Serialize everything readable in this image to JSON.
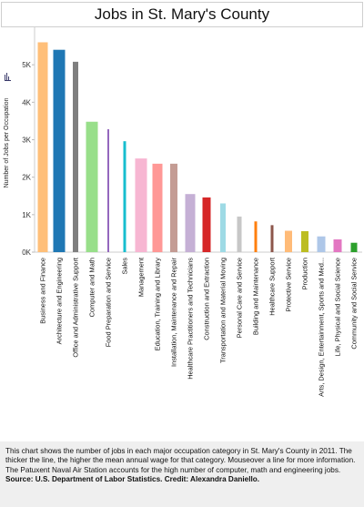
{
  "page": {
    "title": "Jobs in St. Mary's County",
    "caption_text": "This chart shows the number of jobs in each major occupation category in St. Mary's County in 2011. The thicker the line, the higher the mean annual wage for that category.  Mouseover a line for more information. The Patuxent Naval Air Station accounts for the high number of computer, math and engineering jobs. ",
    "caption_source": " Source: U.S. Department of Labor Statistics. Credit: Alexandra Daniello."
  },
  "chart_data": {
    "type": "bar",
    "title": "Jobs in St. Mary's County",
    "ylabel": "Number of Jobs per Occupation",
    "xlabel": "",
    "ylim": [
      0,
      6000
    ],
    "yticks": [
      0,
      1000,
      2000,
      3000,
      4000,
      5000
    ],
    "ytick_labels": [
      "0K",
      "1K",
      "2K",
      "3K",
      "4K",
      "5K"
    ],
    "grid": false,
    "note": "Bar thickness encodes mean annual wage",
    "categories": [
      "Business and Finance",
      "Architecture and Engineering",
      "Office and Administrative Support",
      "Computer and Math",
      "Food Preparation and Service",
      "Sales",
      "Management",
      "Education, Training and Library",
      "Installation, Maintenance and Repair",
      "Healthcare Practitioners and Technicians",
      "Construction and Extraction",
      "Transportation and Material Moving",
      "Personal Care and Service",
      "Building and Maintenance",
      "Healthcare Support",
      "Protective Service",
      "Production",
      "Arts, Design, Entertainment, Sports and Med...",
      "Life, Physical and Social Science",
      "Community and Social Service"
    ],
    "values": [
      5600,
      5400,
      5080,
      3480,
      3280,
      2960,
      2500,
      2360,
      2360,
      1550,
      1460,
      1300,
      950,
      820,
      720,
      570,
      560,
      420,
      340,
      250
    ],
    "bar_weights": [
      11,
      13,
      6,
      13,
      2,
      3,
      13,
      11,
      8,
      11,
      9,
      6,
      5,
      3,
      3,
      8,
      8,
      9,
      9,
      7
    ],
    "colors": [
      "#ffbf79",
      "#1f77b4",
      "#7f7f7f",
      "#98df8a",
      "#9467bd",
      "#17becf",
      "#f7b6d2",
      "#ff9896",
      "#c49c94",
      "#c5b0d5",
      "#d62728",
      "#9edae5",
      "#c7c7c7",
      "#ff7f0e",
      "#8c564b",
      "#ffbb78",
      "#bcbd22",
      "#aec7e8",
      "#e377c2",
      "#2ca02c"
    ]
  }
}
